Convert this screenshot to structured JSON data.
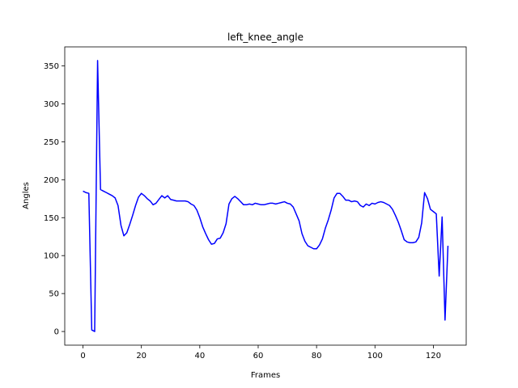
{
  "chart_data": {
    "type": "line",
    "title": "left_knee_angle",
    "xlabel": "Frames",
    "ylabel": "Angles",
    "xlim": [
      -6.25,
      131.25
    ],
    "ylim": [
      -18,
      375
    ],
    "xticks": [
      0,
      20,
      40,
      60,
      80,
      100,
      120
    ],
    "yticks": [
      0,
      50,
      100,
      150,
      200,
      250,
      300,
      350
    ],
    "grid": false,
    "series": [
      {
        "color": "#0000ff",
        "x": [
          0,
          1,
          2,
          3,
          4,
          5,
          6,
          7,
          8,
          9,
          10,
          11,
          12,
          13,
          14,
          15,
          16,
          17,
          18,
          19,
          20,
          21,
          22,
          23,
          24,
          25,
          26,
          27,
          28,
          29,
          30,
          31,
          32,
          33,
          34,
          35,
          36,
          37,
          38,
          39,
          40,
          41,
          42,
          43,
          44,
          45,
          46,
          47,
          48,
          49,
          50,
          51,
          52,
          53,
          54,
          55,
          56,
          57,
          58,
          59,
          60,
          61,
          62,
          63,
          64,
          65,
          66,
          67,
          68,
          69,
          70,
          71,
          72,
          73,
          74,
          75,
          76,
          77,
          78,
          79,
          80,
          81,
          82,
          83,
          84,
          85,
          86,
          87,
          88,
          89,
          90,
          91,
          92,
          93,
          94,
          95,
          96,
          97,
          98,
          99,
          100,
          101,
          102,
          103,
          104,
          105,
          106,
          107,
          108,
          109,
          110,
          111,
          112,
          113,
          114,
          115,
          116,
          117,
          118,
          119,
          120,
          121,
          122,
          123,
          124,
          125
        ],
        "y": [
          185,
          183,
          182,
          2,
          0,
          357,
          187,
          185,
          183,
          181,
          179,
          176,
          166,
          140,
          126,
          130,
          141,
          153,
          166,
          177,
          182,
          179,
          175,
          172,
          167,
          169,
          174,
          179,
          176,
          179,
          174,
          173,
          172,
          172,
          172,
          172,
          171,
          168,
          166,
          160,
          150,
          138,
          129,
          121,
          115,
          116,
          122,
          123,
          130,
          142,
          168,
          175,
          178,
          175,
          171,
          167,
          167,
          168,
          167,
          169,
          168,
          167,
          167,
          168,
          169,
          169,
          168,
          169,
          170,
          171,
          169,
          168,
          164,
          155,
          146,
          129,
          119,
          113,
          111,
          109,
          109,
          114,
          122,
          136,
          147,
          160,
          176,
          182,
          182,
          178,
          173,
          173,
          171,
          172,
          171,
          166,
          164,
          168,
          166,
          169,
          168,
          170,
          171,
          170,
          168,
          166,
          161,
          153,
          144,
          133,
          121,
          118,
          117,
          117,
          118,
          124,
          143,
          183,
          175,
          161,
          158,
          155,
          73,
          151,
          15,
          113
        ]
      }
    ]
  }
}
